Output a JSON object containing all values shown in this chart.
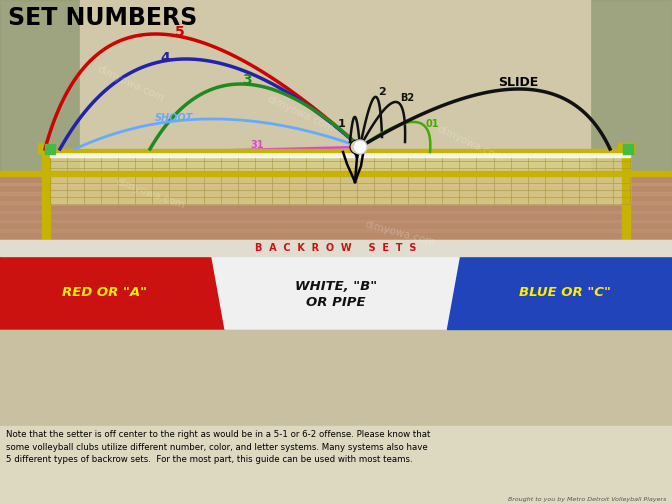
{
  "title": "SET NUMBERS",
  "backrow_header": "B  A  C  K  R  O  W     S  E  T  S",
  "red_label": "RED OR \"A\"",
  "white_label": "WHITE, \"B\"\nOR PIPE",
  "blue_label": "BLUE OR \"C\"",
  "footer_text": "Note that the setter is off center to the right as would be in a 5-1 or 6-2 offense. Please know that\nsome volleyball clubs utilize different number, color, and letter systems. Many systems also have\n5 different types of backrow sets.  For the most part, this guide can be used with most teams.",
  "credit_text": "Brought to you by Metro Detroit Volleyball Players",
  "slide_label": "SLIDE",
  "shoot_label": "SHOOT",
  "bg_top": "#c8c0a0",
  "bg_sky": "#b8b898",
  "court_color": "#b8896a",
  "court_stripe": "#c89878",
  "net_fill": "#d8cc88",
  "net_line": "#a89840",
  "post_color": "#c8b400",
  "footer_bg": "#ddd8c0",
  "red_color": "#cc1111",
  "white_color": "#f0f0f0",
  "blue_color": "#2244bb",
  "backrow_bar_color": "#e0ddd0",
  "backrow_text_color": "#cc1111",
  "red_label_color": "#ffee00",
  "white_label_color": "#111111",
  "blue_label_color": "#ffee00",
  "arc5_color": "#cc0000",
  "arc4_color": "#2222aa",
  "arc3_color": "#228822",
  "shoot_color": "#66aaff",
  "arc31_color": "#dd44dd",
  "arc1_color": "#111111",
  "arc2_color": "#111111",
  "arcB2_color": "#111111",
  "arc01_color": "#44aa00",
  "slide_color": "#111111"
}
